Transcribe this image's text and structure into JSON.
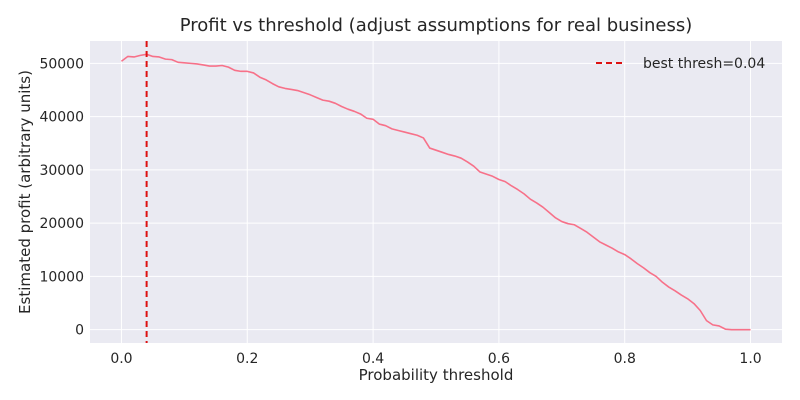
{
  "chart_data": {
    "type": "line",
    "title": "Profit vs threshold (adjust assumptions for real business)",
    "xlabel": "Probability threshold",
    "ylabel": "Estimated profit (arbitrary units)",
    "xlim": [
      -0.05,
      1.05
    ],
    "ylim": [
      -2500,
      54200
    ],
    "x_ticks": [
      0.0,
      0.2,
      0.4,
      0.6,
      0.8,
      1.0
    ],
    "x_tick_labels": [
      "0.0",
      "0.2",
      "0.4",
      "0.6",
      "0.8",
      "1.0"
    ],
    "y_ticks": [
      0,
      10000,
      20000,
      30000,
      40000,
      50000
    ],
    "y_tick_labels": [
      "0",
      "10000",
      "20000",
      "30000",
      "40000",
      "50000"
    ],
    "grid": true,
    "legend_position": "top-right",
    "colors": {
      "series": "#f77189",
      "best_threshold_line": "#dd1111",
      "plot_background": "#eaeaf2",
      "grid": "#ffffff",
      "figure_background": "#ffffff"
    },
    "series": [
      {
        "x": [
          0.0,
          0.01,
          0.02,
          0.03,
          0.04,
          0.05,
          0.06,
          0.07,
          0.08,
          0.09,
          0.1,
          0.11,
          0.12,
          0.13,
          0.14,
          0.15,
          0.16,
          0.17,
          0.18,
          0.19,
          0.2,
          0.21,
          0.22,
          0.23,
          0.24,
          0.25,
          0.26,
          0.27,
          0.28,
          0.29,
          0.3,
          0.31,
          0.32,
          0.33,
          0.34,
          0.35,
          0.36,
          0.37,
          0.38,
          0.39,
          0.4,
          0.41,
          0.42,
          0.43,
          0.44,
          0.45,
          0.46,
          0.47,
          0.48,
          0.49,
          0.5,
          0.51,
          0.52,
          0.53,
          0.54,
          0.55,
          0.56,
          0.57,
          0.58,
          0.59,
          0.6,
          0.61,
          0.62,
          0.63,
          0.64,
          0.65,
          0.66,
          0.67,
          0.68,
          0.69,
          0.7,
          0.71,
          0.72,
          0.73,
          0.74,
          0.75,
          0.76,
          0.77,
          0.78,
          0.79,
          0.8,
          0.81,
          0.82,
          0.83,
          0.84,
          0.85,
          0.86,
          0.87,
          0.88,
          0.89,
          0.9,
          0.91,
          0.92,
          0.93,
          0.94,
          0.95,
          0.96,
          0.97,
          0.98,
          0.99,
          1.0
        ],
        "values": [
          50400,
          51300,
          51200,
          51500,
          51700,
          51300,
          51200,
          50800,
          50700,
          50200,
          50100,
          50000,
          49900,
          49700,
          49500,
          49500,
          49600,
          49300,
          48700,
          48500,
          48500,
          48200,
          47400,
          46900,
          46200,
          45600,
          45300,
          45100,
          44900,
          44500,
          44100,
          43600,
          43100,
          42900,
          42500,
          41900,
          41400,
          41000,
          40500,
          39700,
          39500,
          38600,
          38300,
          37700,
          37400,
          37100,
          36800,
          36500,
          36000,
          34100,
          33700,
          33300,
          32900,
          32600,
          32200,
          31500,
          30700,
          29600,
          29200,
          28800,
          28200,
          27800,
          27000,
          26300,
          25500,
          24500,
          23800,
          23000,
          22000,
          21000,
          20300,
          19900,
          19700,
          19000,
          18300,
          17400,
          16500,
          15900,
          15300,
          14600,
          14100,
          13300,
          12400,
          11600,
          10700,
          10000,
          8900,
          8000,
          7300,
          6500,
          5800,
          4900,
          3600,
          1700,
          900,
          700,
          100,
          0,
          0,
          0,
          0
        ]
      }
    ],
    "annotations": [
      {
        "type": "vline",
        "x": 0.04,
        "style": "dashed",
        "legend_label": "best thresh=0.04"
      }
    ]
  }
}
